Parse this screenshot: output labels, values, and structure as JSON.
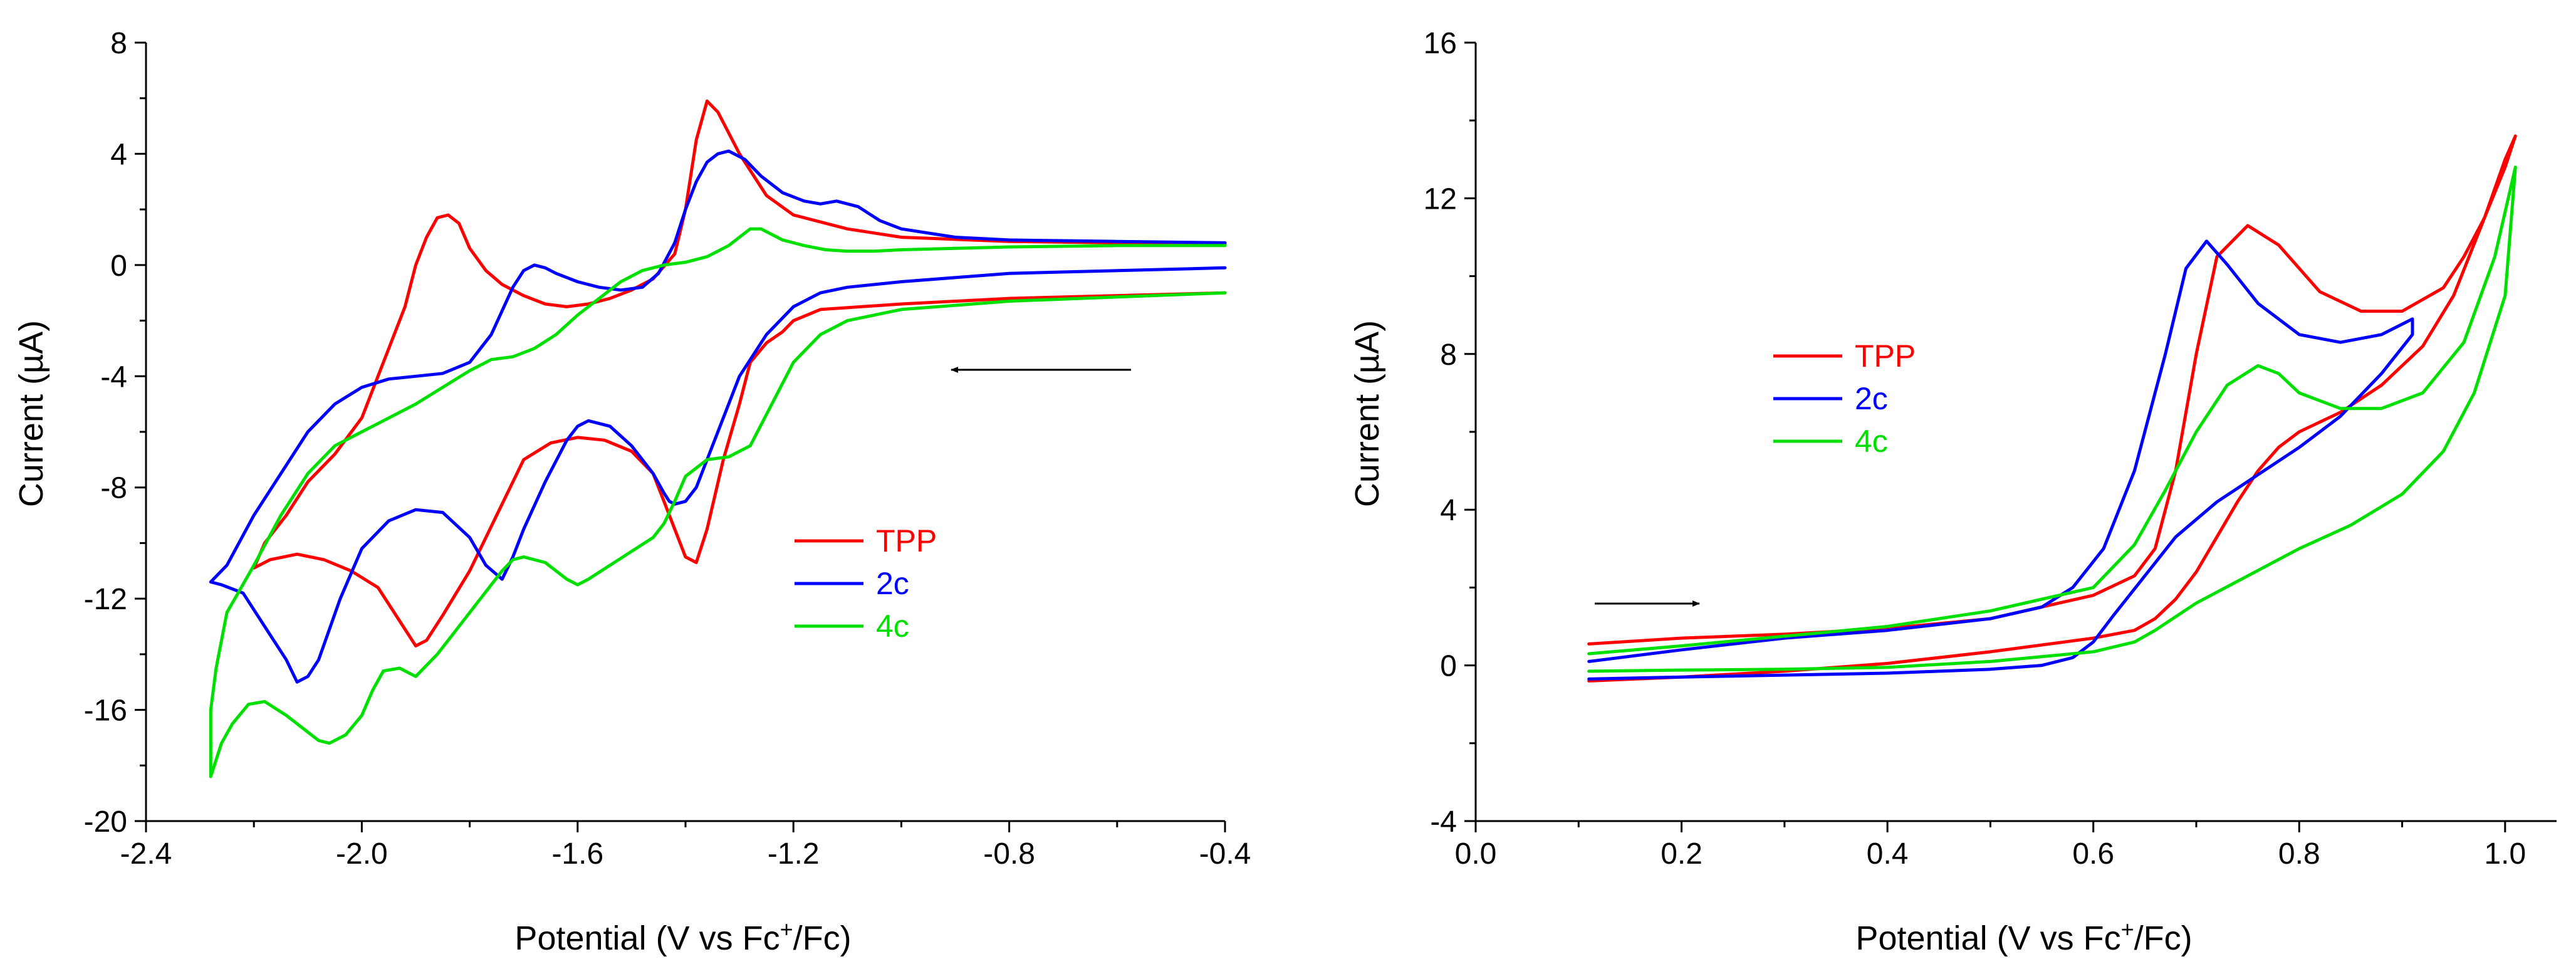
{
  "chart_data": [
    {
      "type": "line",
      "xlabel": "Potential (V vs Fc+/Fc)",
      "ylabel": "Current (µA)",
      "xlim": [
        -2.4,
        -0.4
      ],
      "ylim": [
        -20,
        8
      ],
      "x_ticks": [
        -2.4,
        -2.0,
        -1.6,
        -1.2,
        -0.8,
        -0.4
      ],
      "x_tick_labels": [
        "-2.4",
        "-2.0",
        "-1.6",
        "-1.2",
        "-0.8",
        "-0.4"
      ],
      "y_ticks": [
        -20,
        -16,
        -12,
        -8,
        -4,
        0,
        4,
        8
      ],
      "y_tick_labels": [
        "-20",
        "-16",
        "-12",
        "-8",
        "-4",
        "0",
        "4",
        "8"
      ],
      "grid": false,
      "legend_position": "lower-right",
      "arrow_direction": "left",
      "series": [
        {
          "name": "TPP",
          "color": "#ff0000",
          "x": [
            -0.4,
            -0.8,
            -1.0,
            -1.15,
            -1.2,
            -1.22,
            -1.25,
            -1.28,
            -1.3,
            -1.33,
            -1.36,
            -1.38,
            -1.4,
            -1.42,
            -1.44,
            -1.46,
            -1.5,
            -1.55,
            -1.6,
            -1.65,
            -1.7,
            -1.75,
            -1.8,
            -1.85,
            -1.88,
            -1.9,
            -1.93,
            -1.97,
            -2.02,
            -2.07,
            -2.12,
            -2.17,
            -2.2,
            -2.18,
            -2.14,
            -2.1,
            -2.05,
            -2.0,
            -1.97,
            -1.95,
            -1.92,
            -1.9,
            -1.88,
            -1.86,
            -1.84,
            -1.82,
            -1.8,
            -1.77,
            -1.74,
            -1.7,
            -1.66,
            -1.62,
            -1.58,
            -1.54,
            -1.5,
            -1.46,
            -1.42,
            -1.4,
            -1.38,
            -1.36,
            -1.34,
            -1.3,
            -1.25,
            -1.2,
            -1.1,
            -1.0,
            -0.8,
            -0.6,
            -0.4
          ],
          "y": [
            -1.0,
            -1.2,
            -1.4,
            -1.6,
            -2.0,
            -2.4,
            -2.8,
            -3.5,
            -5.0,
            -7.0,
            -9.5,
            -10.7,
            -10.5,
            -9.5,
            -8.5,
            -7.5,
            -6.7,
            -6.3,
            -6.2,
            -6.4,
            -7.0,
            -9.0,
            -11.0,
            -12.6,
            -13.5,
            -13.7,
            -12.8,
            -11.6,
            -11.0,
            -10.6,
            -10.4,
            -10.6,
            -10.9,
            -10.0,
            -9.0,
            -7.8,
            -6.8,
            -5.5,
            -4.0,
            -3.0,
            -1.5,
            0.0,
            1.0,
            1.7,
            1.8,
            1.5,
            0.6,
            -0.2,
            -0.7,
            -1.1,
            -1.4,
            -1.5,
            -1.4,
            -1.2,
            -0.9,
            -0.5,
            0.4,
            2.0,
            4.5,
            5.9,
            5.5,
            4.0,
            2.5,
            1.8,
            1.3,
            1.0,
            0.85,
            0.8,
            0.75
          ]
        },
        {
          "name": "2c",
          "color": "#0000ff",
          "x": [
            -0.4,
            -0.8,
            -1.0,
            -1.1,
            -1.15,
            -1.2,
            -1.25,
            -1.3,
            -1.33,
            -1.36,
            -1.38,
            -1.4,
            -1.42,
            -1.43,
            -1.44,
            -1.46,
            -1.5,
            -1.54,
            -1.58,
            -1.6,
            -1.62,
            -1.66,
            -1.7,
            -1.72,
            -1.74,
            -1.77,
            -1.8,
            -1.85,
            -1.9,
            -1.95,
            -2.0,
            -2.04,
            -2.08,
            -2.1,
            -2.12,
            -2.14,
            -2.18,
            -2.22,
            -2.26,
            -2.28,
            -2.25,
            -2.2,
            -2.15,
            -2.1,
            -2.05,
            -2.0,
            -1.95,
            -1.9,
            -1.85,
            -1.8,
            -1.76,
            -1.72,
            -1.7,
            -1.68,
            -1.66,
            -1.64,
            -1.6,
            -1.56,
            -1.52,
            -1.48,
            -1.45,
            -1.42,
            -1.4,
            -1.38,
            -1.36,
            -1.34,
            -1.32,
            -1.29,
            -1.26,
            -1.22,
            -1.18,
            -1.15,
            -1.12,
            -1.08,
            -1.04,
            -1.0,
            -0.9,
            -0.8,
            -0.6,
            -0.4
          ],
          "y": [
            -0.1,
            -0.3,
            -0.6,
            -0.8,
            -1.0,
            -1.5,
            -2.5,
            -4.0,
            -5.5,
            -7.0,
            -8.0,
            -8.5,
            -8.6,
            -8.5,
            -8.2,
            -7.5,
            -6.5,
            -5.8,
            -5.6,
            -5.8,
            -6.3,
            -7.8,
            -9.5,
            -10.5,
            -11.3,
            -10.8,
            -9.8,
            -8.9,
            -8.8,
            -9.2,
            -10.2,
            -12.0,
            -14.2,
            -14.8,
            -15.0,
            -14.2,
            -13.0,
            -11.8,
            -11.5,
            -11.4,
            -10.8,
            -9.0,
            -7.5,
            -6.0,
            -5.0,
            -4.4,
            -4.1,
            -4.0,
            -3.9,
            -3.5,
            -2.5,
            -0.8,
            -0.2,
            0.0,
            -0.1,
            -0.3,
            -0.6,
            -0.8,
            -0.9,
            -0.8,
            -0.3,
            0.8,
            2.0,
            3.0,
            3.7,
            4.0,
            4.1,
            3.8,
            3.2,
            2.6,
            2.3,
            2.2,
            2.3,
            2.1,
            1.6,
            1.3,
            1.0,
            0.9,
            0.85,
            0.8
          ]
        },
        {
          "name": "4c",
          "color": "#00e000",
          "x": [
            -0.4,
            -0.8,
            -1.0,
            -1.1,
            -1.15,
            -1.2,
            -1.24,
            -1.28,
            -1.32,
            -1.36,
            -1.4,
            -1.42,
            -1.44,
            -1.46,
            -1.5,
            -1.54,
            -1.58,
            -1.6,
            -1.62,
            -1.66,
            -1.7,
            -1.72,
            -1.74,
            -1.78,
            -1.82,
            -1.86,
            -1.9,
            -1.93,
            -1.96,
            -1.98,
            -2.0,
            -2.03,
            -2.06,
            -2.08,
            -2.1,
            -2.14,
            -2.18,
            -2.21,
            -2.24,
            -2.26,
            -2.28,
            -2.28,
            -2.27,
            -2.25,
            -2.2,
            -2.15,
            -2.1,
            -2.05,
            -2.0,
            -1.95,
            -1.9,
            -1.85,
            -1.8,
            -1.76,
            -1.72,
            -1.68,
            -1.64,
            -1.6,
            -1.56,
            -1.52,
            -1.48,
            -1.44,
            -1.4,
            -1.36,
            -1.32,
            -1.3,
            -1.28,
            -1.26,
            -1.24,
            -1.22,
            -1.18,
            -1.14,
            -1.1,
            -1.05,
            -1.0,
            -0.9,
            -0.8,
            -0.6,
            -0.4
          ],
          "y": [
            -1.0,
            -1.3,
            -1.6,
            -2.0,
            -2.5,
            -3.5,
            -5.0,
            -6.5,
            -6.9,
            -7.0,
            -7.6,
            -8.5,
            -9.3,
            -9.8,
            -10.3,
            -10.8,
            -11.3,
            -11.5,
            -11.3,
            -10.7,
            -10.5,
            -10.6,
            -11.0,
            -12.0,
            -13.0,
            -14.0,
            -14.8,
            -14.5,
            -14.6,
            -15.3,
            -16.2,
            -16.9,
            -17.2,
            -17.1,
            -16.8,
            -16.2,
            -15.7,
            -15.8,
            -16.5,
            -17.2,
            -18.4,
            -16.0,
            -14.5,
            -12.5,
            -10.8,
            -9.0,
            -7.5,
            -6.5,
            -6.0,
            -5.5,
            -5.0,
            -4.4,
            -3.8,
            -3.4,
            -3.3,
            -3.0,
            -2.5,
            -1.8,
            -1.2,
            -0.6,
            -0.2,
            0.0,
            0.1,
            0.3,
            0.7,
            1.0,
            1.3,
            1.3,
            1.1,
            0.9,
            0.7,
            0.55,
            0.5,
            0.5,
            0.55,
            0.6,
            0.65,
            0.7,
            0.7
          ]
        }
      ]
    },
    {
      "type": "line",
      "xlabel": "Potential (V vs Fc+/Fc)",
      "ylabel": "Current (µA)",
      "xlim": [
        0.0,
        1.05
      ],
      "ylim": [
        -4,
        16
      ],
      "x_ticks": [
        0.0,
        0.2,
        0.4,
        0.6,
        0.8,
        1.0
      ],
      "x_tick_labels": [
        "0.0",
        "0.2",
        "0.4",
        "0.6",
        "0.8",
        "1.0"
      ],
      "y_ticks": [
        -4,
        0,
        4,
        8,
        12,
        16
      ],
      "y_tick_labels": [
        "-4",
        "0",
        "4",
        "8",
        "12",
        "16"
      ],
      "grid": false,
      "legend_position": "upper-left",
      "arrow_direction": "right",
      "series": [
        {
          "name": "TPP",
          "color": "#ff0000",
          "x": [
            0.11,
            0.2,
            0.3,
            0.4,
            0.5,
            0.6,
            0.64,
            0.66,
            0.68,
            0.7,
            0.72,
            0.74,
            0.76,
            0.78,
            0.8,
            0.84,
            0.88,
            0.92,
            0.95,
            0.98,
            1.0,
            1.01,
            1.0,
            0.98,
            0.96,
            0.94,
            0.9,
            0.86,
            0.82,
            0.78,
            0.75,
            0.72,
            0.7,
            0.68,
            0.66,
            0.64,
            0.6,
            0.5,
            0.4,
            0.3,
            0.2,
            0.11
          ],
          "y": [
            -0.4,
            -0.3,
            -0.15,
            0.05,
            0.35,
            0.7,
            0.9,
            1.2,
            1.7,
            2.4,
            3.3,
            4.2,
            5.0,
            5.6,
            6.0,
            6.5,
            7.2,
            8.2,
            9.5,
            11.5,
            13.0,
            13.6,
            12.8,
            11.5,
            10.5,
            9.7,
            9.1,
            9.1,
            9.6,
            10.8,
            11.3,
            10.5,
            8.0,
            5.0,
            3.0,
            2.3,
            1.8,
            1.2,
            0.95,
            0.8,
            0.7,
            0.55
          ]
        },
        {
          "name": "2c",
          "color": "#0000ff",
          "x": [
            0.11,
            0.2,
            0.3,
            0.4,
            0.5,
            0.55,
            0.58,
            0.6,
            0.62,
            0.65,
            0.68,
            0.72,
            0.76,
            0.8,
            0.84,
            0.88,
            0.91,
            0.91,
            0.88,
            0.84,
            0.8,
            0.76,
            0.73,
            0.71,
            0.69,
            0.67,
            0.64,
            0.61,
            0.58,
            0.55,
            0.5,
            0.4,
            0.3,
            0.2,
            0.11
          ],
          "y": [
            -0.35,
            -0.3,
            -0.25,
            -0.2,
            -0.1,
            0.0,
            0.2,
            0.6,
            1.3,
            2.3,
            3.3,
            4.2,
            4.9,
            5.6,
            6.4,
            7.5,
            8.5,
            8.9,
            8.5,
            8.3,
            8.5,
            9.3,
            10.3,
            10.9,
            10.2,
            8.0,
            5.0,
            3.0,
            2.0,
            1.5,
            1.2,
            0.9,
            0.7,
            0.4,
            0.1
          ]
        },
        {
          "name": "4c",
          "color": "#00e000",
          "x": [
            0.11,
            0.2,
            0.3,
            0.4,
            0.5,
            0.6,
            0.64,
            0.66,
            0.7,
            0.75,
            0.8,
            0.85,
            0.9,
            0.94,
            0.97,
            1.0,
            1.01,
            0.99,
            0.96,
            0.92,
            0.88,
            0.84,
            0.8,
            0.78,
            0.76,
            0.73,
            0.7,
            0.67,
            0.64,
            0.6,
            0.55,
            0.5,
            0.4,
            0.3,
            0.2,
            0.11
          ],
          "y": [
            -0.15,
            -0.12,
            -0.1,
            -0.05,
            0.1,
            0.35,
            0.6,
            0.9,
            1.6,
            2.3,
            3.0,
            3.6,
            4.4,
            5.5,
            7.0,
            9.5,
            12.8,
            10.5,
            8.3,
            7.0,
            6.6,
            6.6,
            7.0,
            7.5,
            7.7,
            7.2,
            6.0,
            4.5,
            3.1,
            2.0,
            1.7,
            1.4,
            1.0,
            0.75,
            0.5,
            0.3
          ]
        }
      ]
    }
  ]
}
